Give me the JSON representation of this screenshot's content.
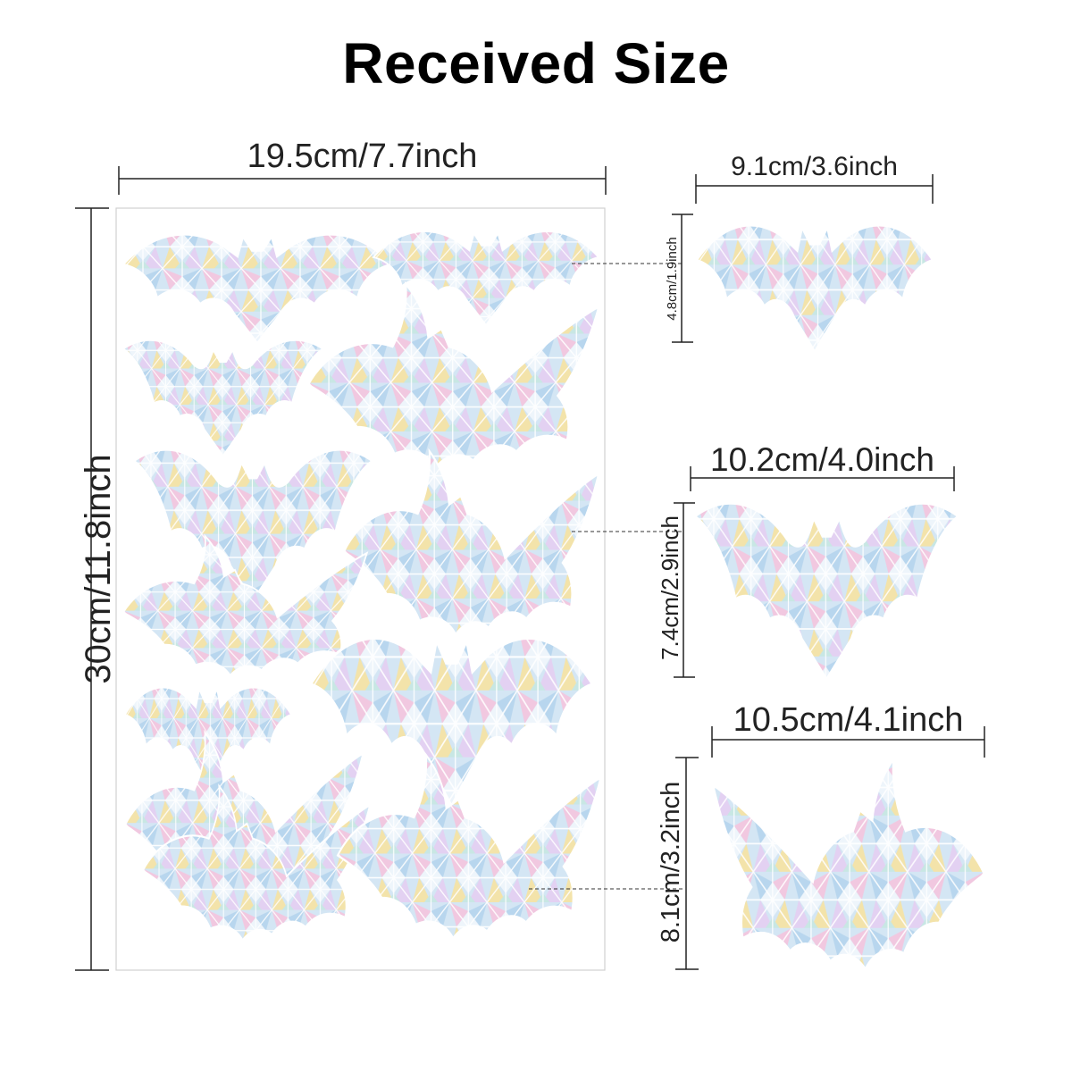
{
  "title": "Received Size",
  "sheet": {
    "width_label": "19.5cm/7.7inch",
    "height_label": "30cm/11.8inch"
  },
  "samples": [
    {
      "width_label": "9.1cm/3.6inch",
      "height_label": "4.8cm/1.9inch"
    },
    {
      "width_label": "10.2cm/4.0inch",
      "height_label": "7.4cm/2.9inch"
    },
    {
      "width_label": "10.5cm/4.1inch",
      "height_label": "8.1cm/3.2inch"
    }
  ],
  "colors": {
    "sticker_base": "#cfe3f2",
    "holo_pink": "#f6b9d8",
    "holo_yellow": "#f7e39a",
    "holo_blue": "#a9cdea",
    "line": "#222222"
  }
}
